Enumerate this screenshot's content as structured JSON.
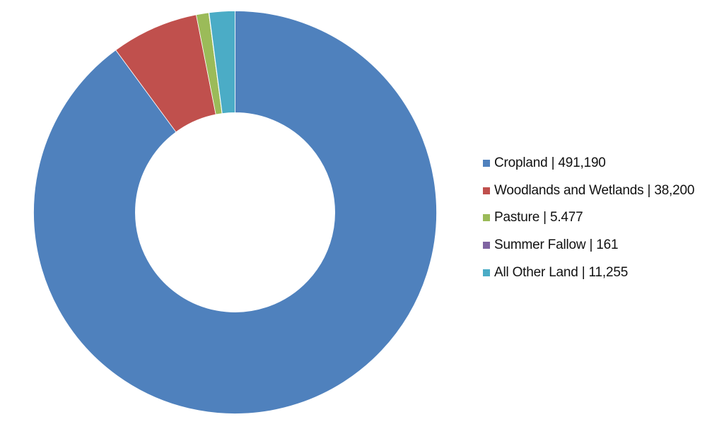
{
  "chart_data": {
    "type": "pie",
    "subtype": "donut",
    "title": "",
    "hole_ratio": 0.495,
    "start_angle_deg": 0,
    "direction": "clockwise",
    "legend_position": "right",
    "slices": [
      {
        "label": "Cropland",
        "value": 491190,
        "display": "491,190",
        "color": "#4F81BD"
      },
      {
        "label": "Woodlands and Wetlands",
        "value": 38200,
        "display": "38,200",
        "color": "#C0504D"
      },
      {
        "label": "Pasture",
        "value": 5477,
        "display": "5.477",
        "color": "#9BBB59"
      },
      {
        "label": "Summer Fallow",
        "value": 161,
        "display": "161",
        "color": "#8064A2"
      },
      {
        "label": "All Other Land",
        "value": 11255,
        "display": "11,255",
        "color": "#4BACC6"
      }
    ]
  },
  "legend": {
    "items": [
      {
        "text": "Cropland | 491,190",
        "color": "#4F81BD"
      },
      {
        "text": "Woodlands and Wetlands | 38,200",
        "color": "#C0504D"
      },
      {
        "text": "Pasture | 5.477",
        "color": "#9BBB59"
      },
      {
        "text": "Summer Fallow | 161",
        "color": "#8064A2"
      },
      {
        "text": "All Other Land | 11,255",
        "color": "#4BACC6"
      }
    ]
  }
}
